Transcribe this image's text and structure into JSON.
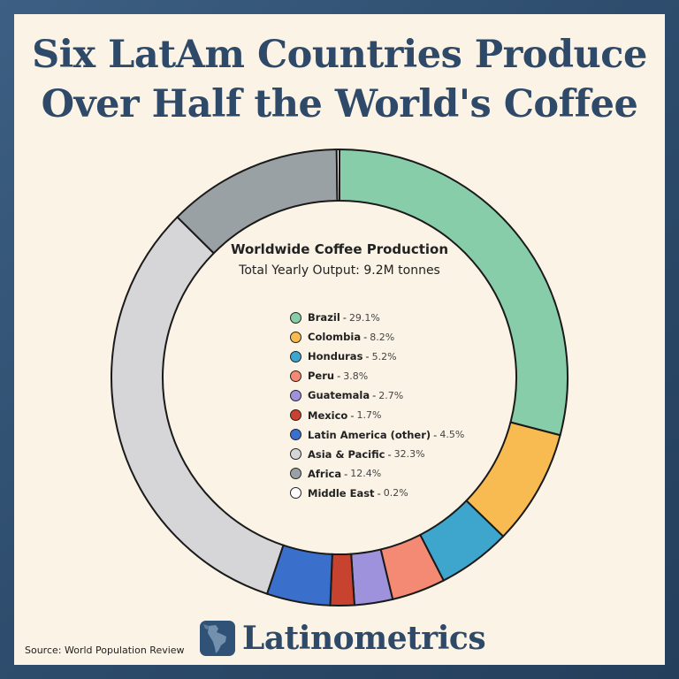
{
  "title_lines": [
    "Six LatAm Countries Produce",
    "Over Half the World's Coffee"
  ],
  "source": "Source: World Population Review",
  "brand": {
    "name": "Latinometrics",
    "icon": "latin-america-map-icon"
  },
  "chart_data": {
    "type": "pie",
    "donut": true,
    "title": "Worldwide Coffee Production",
    "subtitle": "Total Yearly Output: 9.2M tonnes",
    "legend_placement": "center",
    "slices": [
      {
        "label": "Brazil",
        "value": 29.1,
        "pct_label": "29.1%",
        "color": "#88cdaa"
      },
      {
        "label": "Colombia",
        "value": 8.2,
        "pct_label": "8.2%",
        "color": "#f8bb52"
      },
      {
        "label": "Honduras",
        "value": 5.2,
        "pct_label": "5.2%",
        "color": "#3ea5cc"
      },
      {
        "label": "Peru",
        "value": 3.8,
        "pct_label": "3.8%",
        "color": "#f48a74"
      },
      {
        "label": "Guatemala",
        "value": 2.7,
        "pct_label": "2.7%",
        "color": "#9f92dc"
      },
      {
        "label": "Mexico",
        "value": 1.7,
        "pct_label": "1.7%",
        "color": "#c7432f"
      },
      {
        "label": "Latin America (other)",
        "value": 4.5,
        "pct_label": "4.5%",
        "color": "#3a6fcb"
      },
      {
        "label": "Asia & Pacific",
        "value": 32.3,
        "pct_label": "32.3%",
        "color": "#d6d6d9"
      },
      {
        "label": "Africa",
        "value": 12.4,
        "pct_label": "12.4%",
        "color": "#9aa1a4"
      },
      {
        "label": "Middle East",
        "value": 0.2,
        "pct_label": "0.2%",
        "color": "#ffffff"
      }
    ]
  }
}
